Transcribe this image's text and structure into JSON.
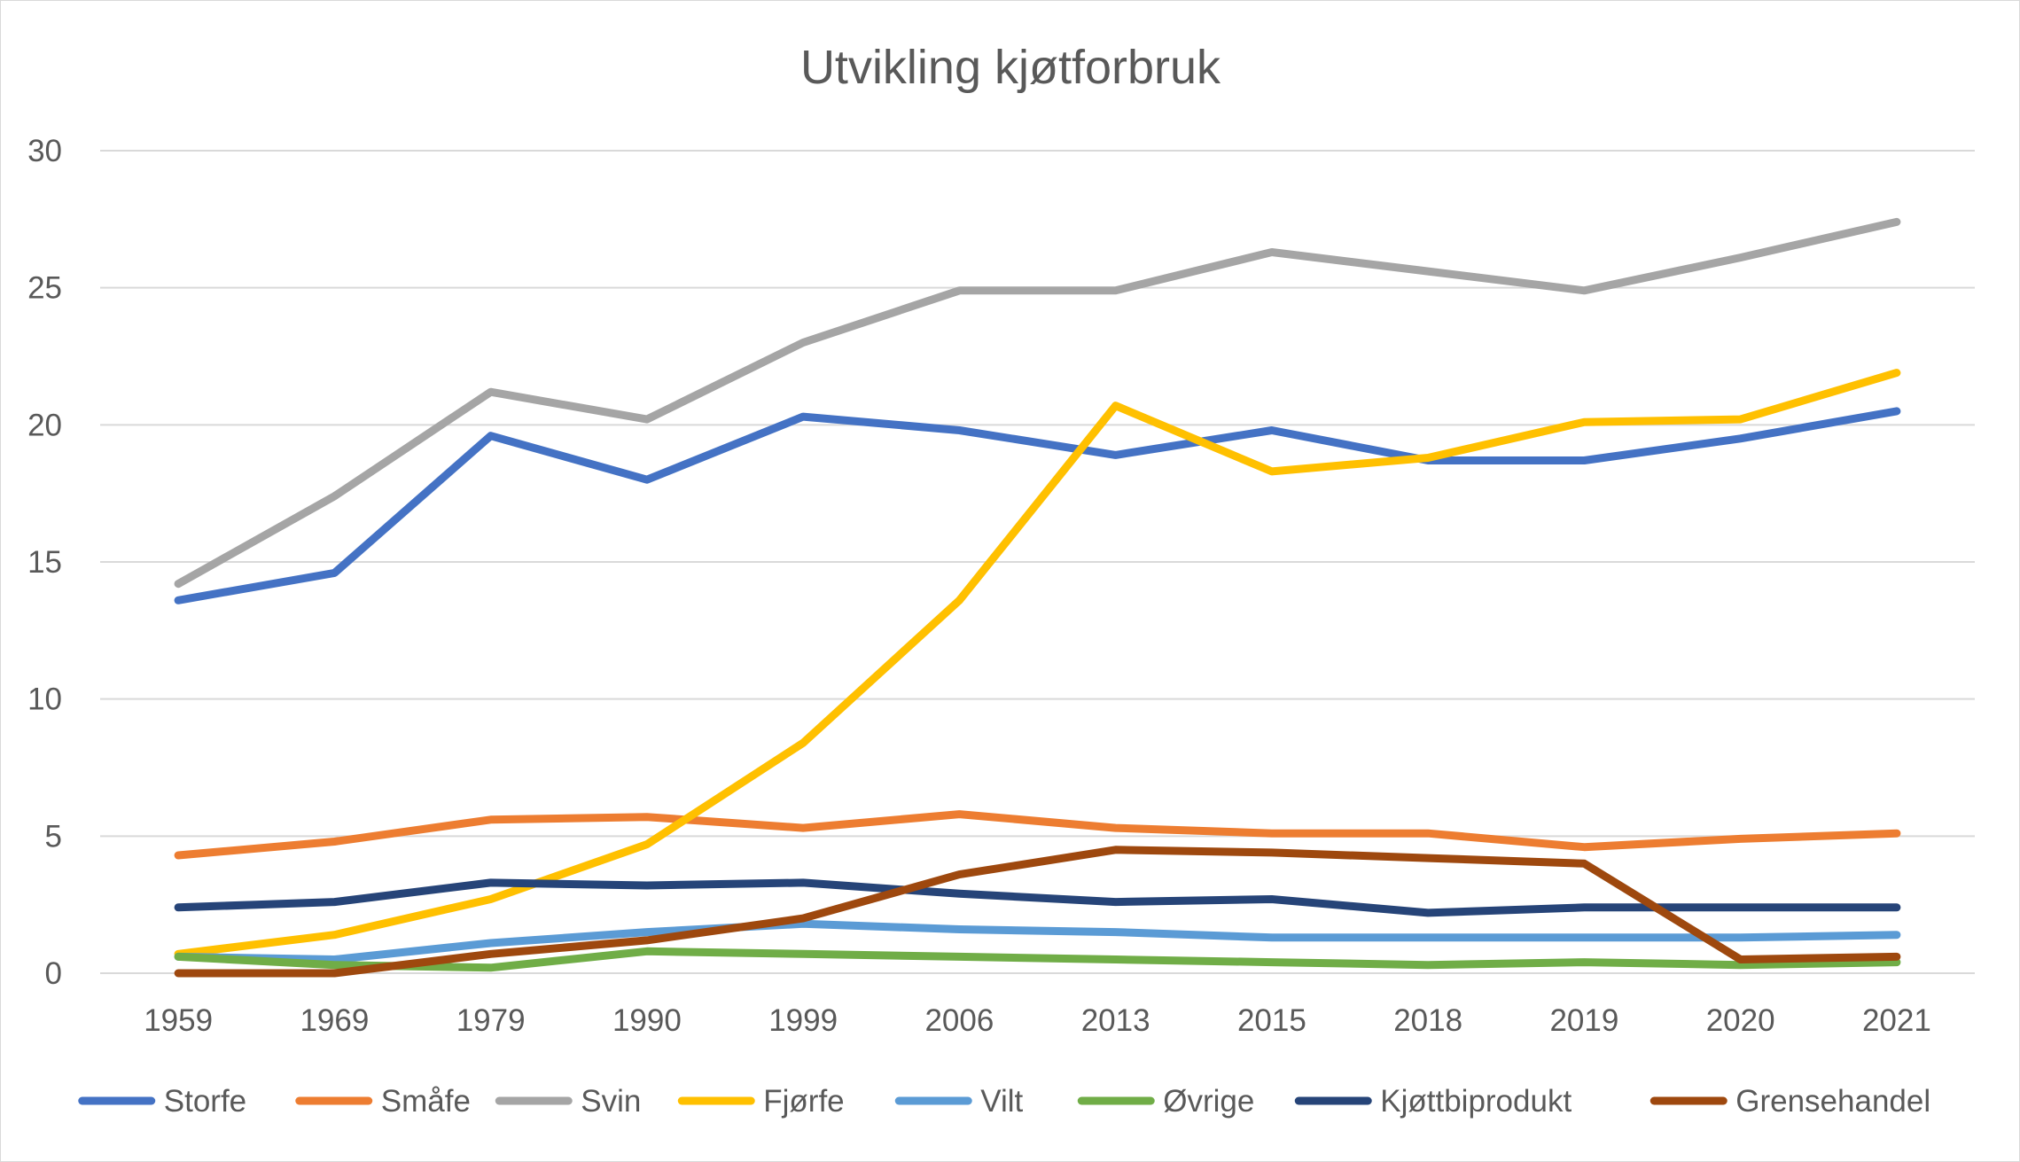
{
  "chart_data": {
    "type": "line",
    "title": "Utvikling kjøtforbruk",
    "xlabel": "",
    "ylabel": "",
    "ylim": [
      0,
      30
    ],
    "yticks": [
      0,
      5,
      10,
      15,
      20,
      25,
      30
    ],
    "categories": [
      "1959",
      "1969",
      "1979",
      "1990",
      "1999",
      "2006",
      "2013",
      "2015",
      "2018",
      "2019",
      "2020",
      "2021"
    ],
    "grid": "horizontal",
    "legend_position": "bottom",
    "series": [
      {
        "name": "Storfe",
        "color": "#4472C4",
        "values": [
          13.6,
          14.6,
          19.6,
          18.0,
          20.3,
          19.8,
          18.9,
          19.8,
          18.7,
          18.7,
          19.5,
          20.5
        ]
      },
      {
        "name": "Småfe",
        "color": "#ED7D31",
        "values": [
          4.3,
          4.8,
          5.6,
          5.7,
          5.3,
          5.8,
          5.3,
          5.1,
          5.1,
          4.6,
          4.9,
          5.1
        ]
      },
      {
        "name": "Svin",
        "color": "#A5A5A5",
        "values": [
          14.2,
          17.4,
          21.2,
          20.2,
          23.0,
          24.9,
          24.9,
          26.3,
          25.6,
          24.9,
          26.1,
          27.4
        ]
      },
      {
        "name": "Fjørfe",
        "color": "#FFC000",
        "values": [
          0.7,
          1.4,
          2.7,
          4.7,
          8.4,
          13.6,
          20.7,
          18.3,
          18.8,
          20.1,
          20.2,
          21.9
        ]
      },
      {
        "name": "Vilt",
        "color": "#5B9BD5",
        "values": [
          0.6,
          0.5,
          1.1,
          1.5,
          1.8,
          1.6,
          1.5,
          1.3,
          1.3,
          1.3,
          1.3,
          1.4
        ]
      },
      {
        "name": "Øvrige",
        "color": "#70AD47",
        "values": [
          0.6,
          0.3,
          0.2,
          0.8,
          0.7,
          0.6,
          0.5,
          0.4,
          0.3,
          0.4,
          0.3,
          0.4
        ]
      },
      {
        "name": "Kjøttbiprodukt",
        "color": "#264478",
        "values": [
          2.4,
          2.6,
          3.3,
          3.2,
          3.3,
          2.9,
          2.6,
          2.7,
          2.2,
          2.4,
          2.4,
          2.4
        ]
      },
      {
        "name": "Grensehandel",
        "color": "#9E480E",
        "values": [
          0.0,
          0.0,
          0.7,
          1.2,
          2.0,
          3.6,
          4.5,
          4.4,
          4.2,
          4.0,
          0.5,
          0.6
        ]
      }
    ]
  }
}
